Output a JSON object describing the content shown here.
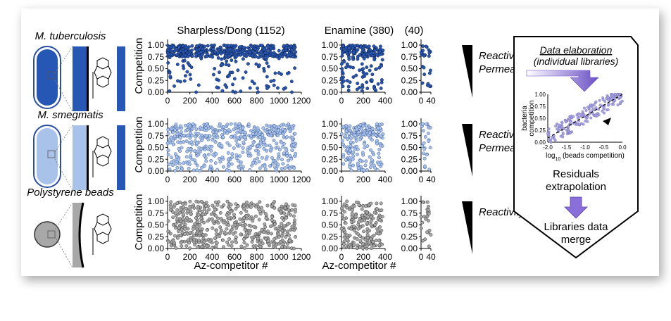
{
  "col_headers": [
    "Sharpless/Dong (1152)",
    "Enamine (380)",
    "(40)"
  ],
  "rows": [
    {
      "organism": "M. tuberculosis",
      "label": "Reactivity &\nPermeation",
      "color": "#1f3a6e"
    },
    {
      "organism": "M. smegmatis",
      "label": "Reactivity &\nPermeation",
      "color": "#86a4d8"
    },
    {
      "organism": "Polystyrene beads",
      "label": "Reactivity",
      "color": "#8a8a8a"
    }
  ],
  "y_axis_label": "Competition",
  "x_axis_label": "Az-competitor #",
  "y_ticks": [
    "0.00",
    "0.25",
    "0.50",
    "0.75",
    "1.00"
  ],
  "x_ticks_large": [
    "0",
    "200",
    "400",
    "600",
    "800",
    "1000",
    "1200"
  ],
  "x_ticks_mid": [
    "0",
    "200",
    "400"
  ],
  "x_ticks_small": [
    "0",
    "40"
  ],
  "side_panel": {
    "title": "Data elaboration",
    "subtitle": "(individual libraries)",
    "inset_ylabel_1": "bacteria",
    "inset_ylabel_2": "competition",
    "inset_xlabel_pre": "log",
    "inset_xlabel_sub": "10",
    "inset_xlabel_post": " (beads competition)",
    "inset_x_ticks": [
      "-2.0",
      "-1.5",
      "-1.0",
      "-0.5",
      "0.0"
    ],
    "inset_y_ticks": [
      "0.00",
      "0.25",
      "0.50",
      "0.75",
      "1.00"
    ],
    "step2": "Residuals\nextrapolation",
    "step3": "Libraries data\nmerge"
  },
  "colors": {
    "red_label": "#d42a2a",
    "mtb_fill": "#2757b4",
    "msm_fill": "#a9c2ea",
    "bead_fill": "#a8a8a8",
    "arrow": "#8a6fd8"
  }
}
